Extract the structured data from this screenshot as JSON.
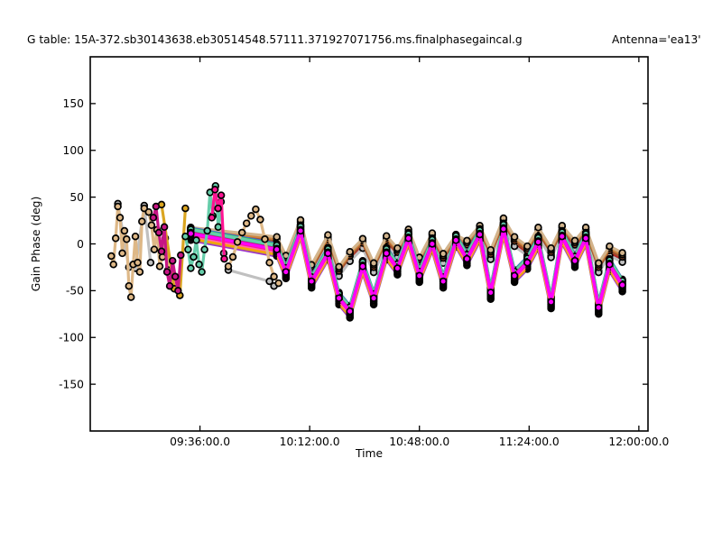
{
  "figure": {
    "g_table_title": "G table: 15A-372.sb30143638.eb30514548.57111.371927071756.ms.finalphasegaincal.g",
    "antenna_title": "Antenna='ea13'"
  },
  "chart_data": {
    "type": "line",
    "title": "G table: 15A-372.sb30143638.eb30514548.57111.371927071756.ms.finalphasegaincal.g    Antenna='ea13'",
    "xlabel": "Time",
    "ylabel": "Gain Phase (deg)",
    "xlim_hours": [
      9.0,
      12.05
    ],
    "ylim": [
      -200,
      200
    ],
    "grid": false,
    "legend": "none",
    "marker": "circle-black-edge",
    "xticks": [
      {
        "v": 9.6,
        "label": "09:36:00.0"
      },
      {
        "v": 10.2,
        "label": "10:12:00.0"
      },
      {
        "v": 10.8,
        "label": "10:48:00.0"
      },
      {
        "v": 11.4,
        "label": "11:24:00.0"
      },
      {
        "v": 12.0,
        "label": "12:00:00.0"
      }
    ],
    "yticks": [
      {
        "v": 150,
        "label": "150"
      },
      {
        "v": 100,
        "label": "100"
      },
      {
        "v": 50,
        "label": "50"
      },
      {
        "v": 0,
        "label": "0"
      },
      {
        "v": -50,
        "label": "-50"
      },
      {
        "v": -100,
        "label": "-100"
      },
      {
        "v": -150,
        "label": "-150"
      }
    ],
    "band_x": [
      9.55,
      10.02,
      10.07,
      10.15,
      10.21,
      10.3,
      10.36,
      10.42,
      10.49,
      10.55,
      10.62,
      10.68,
      10.74,
      10.8,
      10.87,
      10.93,
      11.0,
      11.06,
      11.13,
      11.19,
      11.26,
      11.32,
      11.39,
      11.45,
      11.52,
      11.58,
      11.65,
      11.71,
      11.78,
      11.84,
      11.91
    ],
    "bands": {
      "upper": [
        14,
        4,
        -16,
        22,
        -26,
        6,
        -28,
        -12,
        2,
        -24,
        5,
        -8,
        12,
        -18,
        8,
        -14,
        6,
        0,
        16,
        -10,
        24,
        4,
        -6,
        14,
        -8,
        16,
        0,
        14,
        -24,
        -6,
        -13
      ],
      "lower": [
        11,
        -6,
        -30,
        14,
        -40,
        -10,
        -58,
        -72,
        -24,
        -58,
        -10,
        -26,
        6,
        -34,
        0,
        -40,
        4,
        -16,
        10,
        -52,
        16,
        -34,
        -20,
        2,
        -62,
        8,
        -18,
        6,
        -68,
        -22,
        -44
      ]
    },
    "band_series": [
      {
        "name": "spw-steelblue",
        "color": "#4682B4",
        "band": "upper",
        "offset": -5
      },
      {
        "name": "spw-firebrick",
        "color": "#B22222",
        "band": "upper",
        "offset": -3
      },
      {
        "name": "spw-silver",
        "color": "#C0C0C0",
        "band": "upper",
        "offset": -6.5
      },
      {
        "name": "spw-sienna",
        "color": "#A0522D",
        "band": "upper",
        "offset": -1
      },
      {
        "name": "spw-peru",
        "color": "#CD853F",
        "band": "upper",
        "offset": 1.5
      },
      {
        "name": "spw-tan",
        "color": "#D2B48C",
        "band": "upper",
        "offset": 3.5
      },
      {
        "name": "spw-royalblue",
        "color": "#4169E1",
        "band": "lower",
        "offset": 6
      },
      {
        "name": "spw-darkorchid",
        "color": "#9932CC",
        "band": "lower",
        "offset": -7
      },
      {
        "name": "spw-limegreen",
        "color": "#32CD32",
        "band": "lower",
        "offset": 5
      },
      {
        "name": "spw-turquoise",
        "color": "#40E0D0",
        "band": "lower",
        "offset": 3.5
      },
      {
        "name": "spw-springgreen",
        "color": "#00FA9A",
        "band": "lower",
        "offset": 2
      },
      {
        "name": "spw-mediumaquamarine",
        "color": "#66CDAA",
        "band": "lower",
        "offset": 4.5
      },
      {
        "name": "spw-goldenrod",
        "color": "#DAA520",
        "band": "lower",
        "offset": -5.5
      },
      {
        "name": "spw-orange",
        "color": "#FFA500",
        "band": "lower",
        "offset": -4
      },
      {
        "name": "spw-hotpink",
        "color": "#FF69B4",
        "band": "lower",
        "offset": -2.5
      },
      {
        "name": "spw-mediumvioletred",
        "color": "#C71585",
        "band": "lower",
        "offset": 1
      },
      {
        "name": "spw-deeppink",
        "color": "#FF1493",
        "band": "lower",
        "offset": -1
      },
      {
        "name": "spw-magenta",
        "color": "#FF00FF",
        "band": "lower",
        "offset": 0
      }
    ],
    "early_series": [
      {
        "name": "scan1-gray",
        "color": "#C0C0C0",
        "x": [
          9.151,
          9.211,
          9.247,
          9.295,
          9.33
        ],
        "y": [
          43,
          -25,
          -26,
          41,
          -20
        ]
      },
      {
        "name": "scan1-wheat",
        "color": "#DEB887",
        "x": [
          9.115,
          9.127,
          9.139,
          9.151,
          9.163,
          9.175,
          9.187,
          9.199,
          9.211,
          9.223,
          9.235,
          9.247,
          9.259,
          9.271,
          9.283,
          9.295
        ],
        "y": [
          -13,
          -22,
          6,
          40,
          28,
          -10,
          14,
          5,
          -45,
          -57,
          -22,
          8,
          -20,
          -30,
          24,
          38
        ]
      },
      {
        "name": "scan2-wheat",
        "color": "#DEB887",
        "x": [
          9.32,
          9.335,
          9.35,
          9.365,
          9.38,
          9.395,
          9.41,
          9.425
        ],
        "y": [
          34,
          20,
          -6,
          15,
          -24,
          -14,
          6,
          -28
        ]
      },
      {
        "name": "scan2-goldenrod",
        "color": "#DAA520",
        "x": [
          9.39,
          9.46,
          9.49,
          9.52
        ],
        "y": [
          42,
          -48,
          -55,
          38
        ]
      },
      {
        "name": "scan2-magenta",
        "color": "#C71585",
        "x": [
          9.345,
          9.36,
          9.375,
          9.39,
          9.405,
          9.42,
          9.435,
          9.45,
          9.465,
          9.48,
          9.495
        ],
        "y": [
          28,
          40,
          12,
          -8,
          18,
          -30,
          -45,
          -18,
          -35,
          -50,
          -12
        ]
      },
      {
        "name": "scan3-aquamarine",
        "color": "#66CDAA",
        "x": [
          9.52,
          9.535,
          9.55,
          9.565,
          9.58,
          9.595,
          9.61,
          9.625,
          9.64,
          9.655,
          9.67,
          9.685,
          9.7,
          9.715,
          9.73
        ],
        "y": [
          8,
          -6,
          -26,
          -14,
          4,
          -22,
          -30,
          -6,
          14,
          55,
          30,
          62,
          18,
          45,
          -10
        ]
      },
      {
        "name": "scan3-deeppink",
        "color": "#FF1493",
        "x": [
          9.665,
          9.682,
          9.699,
          9.716,
          9.733
        ],
        "y": [
          28,
          58,
          38,
          52,
          -16
        ]
      },
      {
        "name": "scan4-gray",
        "color": "#C0C0C0",
        "x": [
          9.755,
          9.98,
          10.005
        ],
        "y": [
          -28,
          -40,
          -45
        ]
      },
      {
        "name": "scan4-wheat",
        "color": "#DEB887",
        "x": [
          9.755,
          9.78,
          9.805,
          9.83,
          9.855,
          9.88,
          9.905,
          9.93,
          9.955,
          9.98,
          10.005,
          10.03
        ],
        "y": [
          -24,
          -14,
          2,
          12,
          22,
          30,
          37,
          26,
          5,
          -20,
          -35,
          -42
        ]
      }
    ]
  }
}
